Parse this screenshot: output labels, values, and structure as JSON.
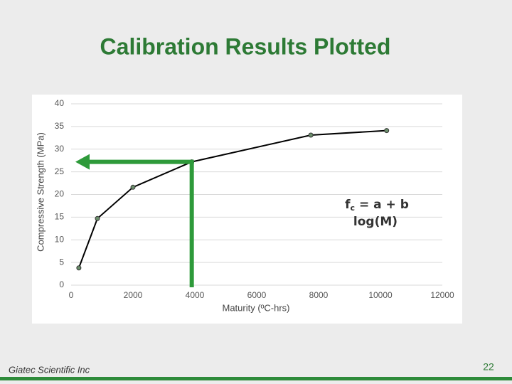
{
  "chart_data": {
    "type": "line",
    "title": "Calibration Results Plotted",
    "x_label": "Maturity (ºC-hrs)",
    "y_label": "Compressive Strength (MPa)",
    "x": [
      250,
      850,
      2000,
      3900,
      7750,
      10200
    ],
    "series": [
      {
        "color": "#000000",
        "marker_color": "#6b8e6b",
        "values": [
          3.8,
          14.7,
          21.6,
          27.2,
          33.1,
          34.1
        ]
      }
    ],
    "xlim": [
      0,
      12000
    ],
    "xticks": [
      0,
      2000,
      4000,
      6000,
      8000,
      10000,
      12000
    ],
    "ylim": [
      0,
      40
    ],
    "yticks": [
      0,
      5,
      10,
      15,
      20,
      25,
      30,
      35,
      40
    ],
    "grid": true,
    "arrow_color": "#2e9a3a",
    "formula": {
      "f": "f",
      "sub": "c",
      "rest1": " = a + b",
      "rest2": "log(M)"
    }
  },
  "footer": {
    "company": "Giatec Scientific Inc",
    "page": "22"
  }
}
